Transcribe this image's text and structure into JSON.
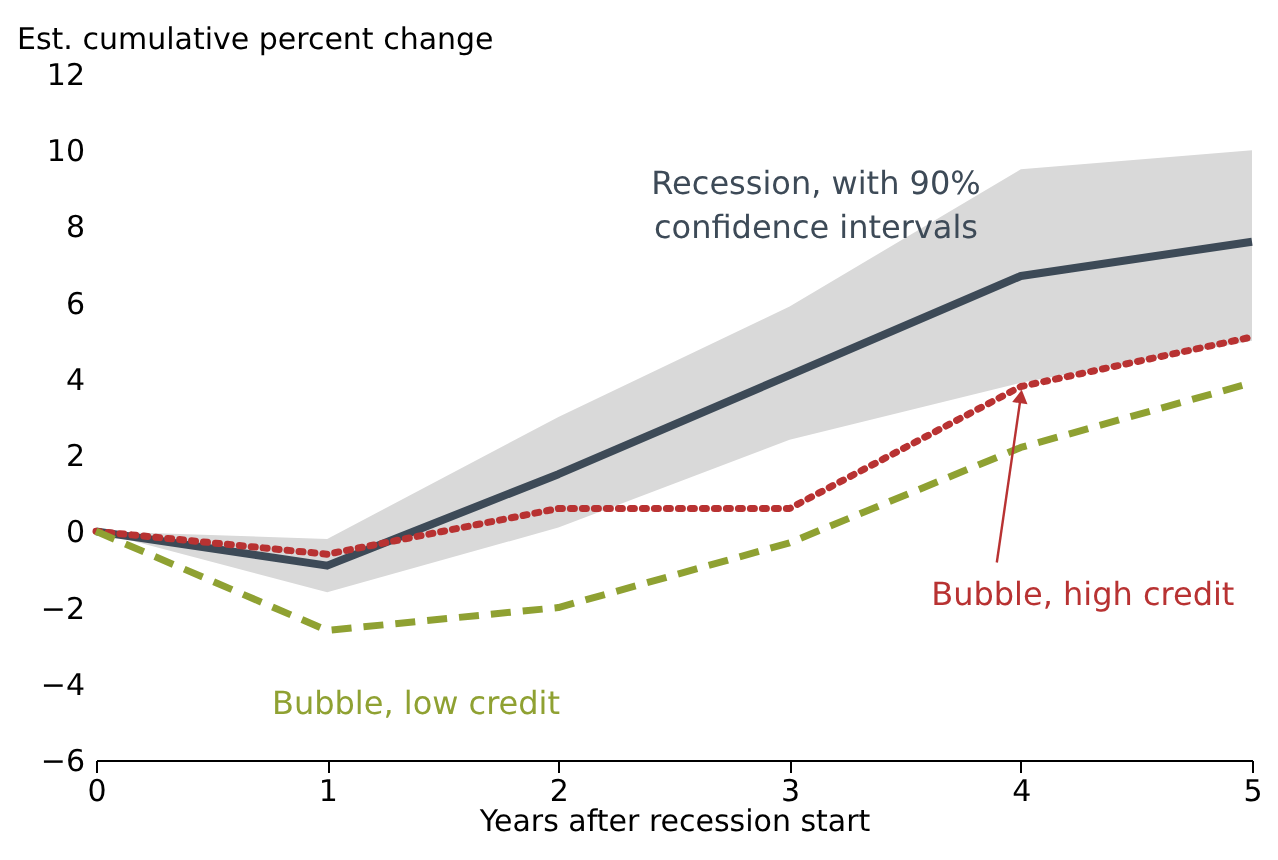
{
  "chart_data": {
    "type": "line",
    "xlabel": "Years after recession start",
    "ylabel": "Est. cumulative percent change",
    "x": [
      0,
      1,
      2,
      3,
      4,
      5
    ],
    "series": [
      {
        "color": "#3d4a57",
        "values": [
          0,
          -0.9,
          1.5,
          4.1,
          6.7,
          7.6
        ],
        "lower": [
          0,
          -1.6,
          0.1,
          2.4,
          3.9,
          5.0
        ],
        "upper": [
          0,
          -0.2,
          3.0,
          5.9,
          9.5,
          10.0
        ],
        "line_style": "solid"
      },
      {
        "color": "#b83232",
        "values": [
          0,
          -0.6,
          0.6,
          0.6,
          3.8,
          5.1
        ],
        "line_style": "dotted"
      },
      {
        "color": "#8fa132",
        "values": [
          0,
          -2.6,
          -2.0,
          -0.3,
          2.2,
          3.9
        ],
        "line_style": "dashed"
      }
    ],
    "xlim": [
      0,
      5
    ],
    "xticks": [
      0,
      1,
      2,
      3,
      4,
      5
    ],
    "ylim": [
      -6,
      12
    ],
    "yticks": [
      -6,
      -4,
      -2,
      0,
      2,
      4,
      6,
      8,
      10,
      12
    ],
    "grid": false,
    "marker": "none",
    "annotations": [
      "Recession, with 90%\nconfidence intervals",
      {
        "text": "Bubble, high credit",
        "x": 4,
        "y": 3.8
      },
      "Bubble, low credit"
    ]
  }
}
